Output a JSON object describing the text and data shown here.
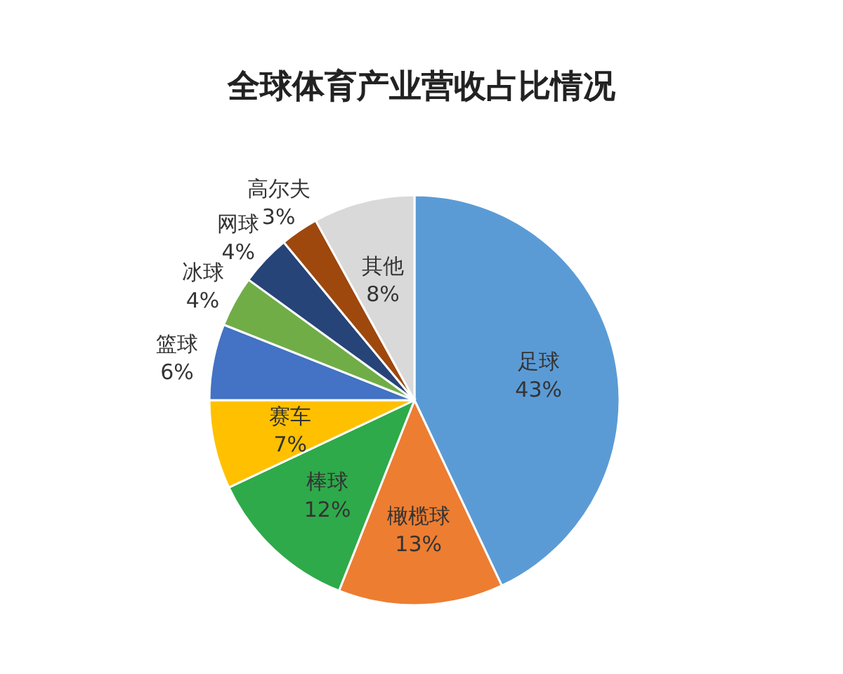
{
  "chart_data": {
    "type": "pie",
    "title": "全球体育产业营收占比情况",
    "categories": [
      "足球",
      "橄榄球",
      "棒球",
      "赛车",
      "篮球",
      "冰球",
      "网球",
      "高尔夫",
      "其他"
    ],
    "values": [
      43,
      13,
      12,
      7,
      6,
      4,
      4,
      3,
      8
    ],
    "value_labels": [
      "43%",
      "13%",
      "12%",
      "7%",
      "6%",
      "4%",
      "4%",
      "3%",
      "8%"
    ],
    "colors": [
      "#5b9bd5",
      "#ed7d31",
      "#2eaa4a",
      "#ffc000",
      "#4472c4",
      "#70ad47",
      "#264478",
      "#9e480e",
      "#d9d9d9"
    ],
    "legend": false
  }
}
